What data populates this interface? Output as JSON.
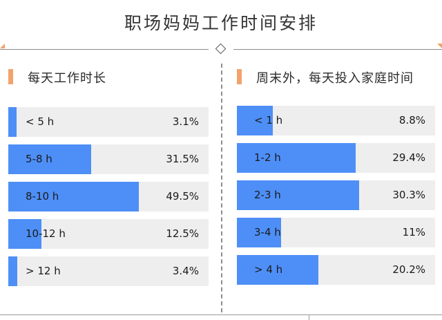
{
  "title": "职场妈妈工作时间安排",
  "chart_data": [
    {
      "type": "bar",
      "orientation": "horizontal",
      "title": "每天工作时长",
      "categories": [
        "< 5 h",
        "5-8 h",
        "8-10 h",
        "10-12 h",
        "> 12 h"
      ],
      "values": [
        3.1,
        31.5,
        49.5,
        12.5,
        3.4
      ],
      "labels": [
        "3.1%",
        "31.5%",
        "49.5%",
        "12.5%",
        "3.4%"
      ],
      "xlim": [
        0,
        76
      ],
      "color": "#4e8ff7"
    },
    {
      "type": "bar",
      "orientation": "horizontal",
      "title": "周末外，每天投入家庭时间",
      "categories": [
        "< 1 h",
        "1-2 h",
        "2-3 h",
        "3-4 h",
        "> 4 h"
      ],
      "values": [
        8.8,
        29.4,
        30.3,
        11,
        20.2
      ],
      "labels": [
        "8.8%",
        "29.4%",
        "30.3%",
        "11%",
        "20.2%"
      ],
      "xlim": [
        0,
        49
      ],
      "color": "#4e8ff7"
    }
  ],
  "colors": {
    "accent": "#f2a36d",
    "bar": "#4e8ff7",
    "track": "#eeeeee"
  }
}
